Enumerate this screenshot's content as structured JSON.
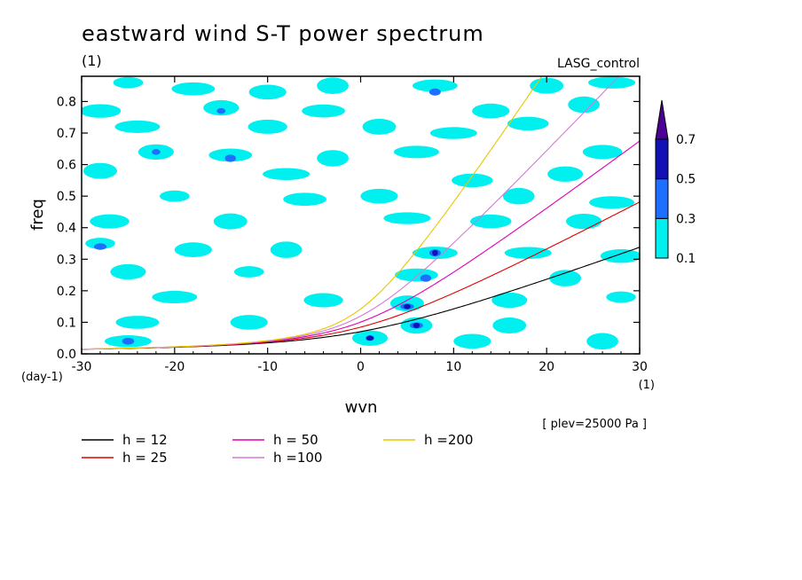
{
  "chart_data": {
    "type": "contour",
    "title": "eastward wind S-T power spectrum",
    "subtitle_left": "(1)",
    "subtitle_right": "LASG_control",
    "xlabel": "wvn",
    "ylabel": "freq",
    "x_unit": "(1)",
    "y_unit": "(day-1)",
    "annotation": "[ plev=25000 Pa ]",
    "xlim": [
      -30,
      30
    ],
    "ylim": [
      0,
      0.88
    ],
    "x_ticks": [
      -30,
      -20,
      -10,
      0,
      10,
      20,
      30
    ],
    "x_tick_labels": [
      "-30",
      "-20",
      "-10",
      "0",
      "10",
      "20",
      "30"
    ],
    "y_ticks": [
      0,
      0.1,
      0.2,
      0.3,
      0.4,
      0.5,
      0.6,
      0.7,
      0.8
    ],
    "y_tick_labels": [
      "0.0",
      "0.1",
      "0.2",
      "0.3",
      "0.4",
      "0.5",
      "0.6",
      "0.7",
      "0.8"
    ],
    "colorbar": {
      "levels": [
        0.1,
        0.3,
        0.5,
        0.7
      ],
      "labels": [
        "0.1",
        "0.3",
        "0.5",
        "0.7"
      ],
      "colors": [
        "#00f0f0",
        "#1e6eff",
        "#1212b4",
        "#4b0096"
      ]
    },
    "patches": [
      {
        "x": -25,
        "y": 0.86,
        "level": 0.1
      },
      {
        "x": -18,
        "y": 0.84,
        "level": 0.1
      },
      {
        "x": -10,
        "y": 0.83,
        "level": 0.1
      },
      {
        "x": -3,
        "y": 0.85,
        "level": 0.1
      },
      {
        "x": 8,
        "y": 0.85,
        "level": 0.1
      },
      {
        "x": 8,
        "y": 0.83,
        "level": 0.3
      },
      {
        "x": 20,
        "y": 0.85,
        "level": 0.1
      },
      {
        "x": 27,
        "y": 0.86,
        "level": 0.1
      },
      {
        "x": -28,
        "y": 0.77,
        "level": 0.1
      },
      {
        "x": -15,
        "y": 0.78,
        "level": 0.1
      },
      {
        "x": -15,
        "y": 0.77,
        "level": 0.3
      },
      {
        "x": -4,
        "y": 0.77,
        "level": 0.1
      },
      {
        "x": 14,
        "y": 0.77,
        "level": 0.1
      },
      {
        "x": 24,
        "y": 0.79,
        "level": 0.1
      },
      {
        "x": -24,
        "y": 0.72,
        "level": 0.1
      },
      {
        "x": -10,
        "y": 0.72,
        "level": 0.1
      },
      {
        "x": 2,
        "y": 0.72,
        "level": 0.1
      },
      {
        "x": 10,
        "y": 0.7,
        "level": 0.1
      },
      {
        "x": 18,
        "y": 0.73,
        "level": 0.1
      },
      {
        "x": -22,
        "y": 0.64,
        "level": 0.1
      },
      {
        "x": -22,
        "y": 0.64,
        "level": 0.3
      },
      {
        "x": -14,
        "y": 0.63,
        "level": 0.1
      },
      {
        "x": -14,
        "y": 0.62,
        "level": 0.3
      },
      {
        "x": -3,
        "y": 0.62,
        "level": 0.1
      },
      {
        "x": 6,
        "y": 0.64,
        "level": 0.1
      },
      {
        "x": 26,
        "y": 0.64,
        "level": 0.1
      },
      {
        "x": -28,
        "y": 0.58,
        "level": 0.1
      },
      {
        "x": -8,
        "y": 0.57,
        "level": 0.1
      },
      {
        "x": 12,
        "y": 0.55,
        "level": 0.1
      },
      {
        "x": 22,
        "y": 0.57,
        "level": 0.1
      },
      {
        "x": -20,
        "y": 0.5,
        "level": 0.1
      },
      {
        "x": -6,
        "y": 0.49,
        "level": 0.1
      },
      {
        "x": 2,
        "y": 0.5,
        "level": 0.1
      },
      {
        "x": 17,
        "y": 0.5,
        "level": 0.1
      },
      {
        "x": 27,
        "y": 0.48,
        "level": 0.1
      },
      {
        "x": -27,
        "y": 0.42,
        "level": 0.1
      },
      {
        "x": -14,
        "y": 0.42,
        "level": 0.1
      },
      {
        "x": 5,
        "y": 0.43,
        "level": 0.1
      },
      {
        "x": 14,
        "y": 0.42,
        "level": 0.1
      },
      {
        "x": 24,
        "y": 0.42,
        "level": 0.1
      },
      {
        "x": -28,
        "y": 0.35,
        "level": 0.1
      },
      {
        "x": -28,
        "y": 0.34,
        "level": 0.3
      },
      {
        "x": -18,
        "y": 0.33,
        "level": 0.1
      },
      {
        "x": -8,
        "y": 0.33,
        "level": 0.1
      },
      {
        "x": 8,
        "y": 0.32,
        "level": 0.1
      },
      {
        "x": 8,
        "y": 0.32,
        "level": 0.3
      },
      {
        "x": 8,
        "y": 0.32,
        "level": 0.5
      },
      {
        "x": 18,
        "y": 0.32,
        "level": 0.1
      },
      {
        "x": 28,
        "y": 0.31,
        "level": 0.1
      },
      {
        "x": -25,
        "y": 0.26,
        "level": 0.1
      },
      {
        "x": -12,
        "y": 0.26,
        "level": 0.1
      },
      {
        "x": 6,
        "y": 0.25,
        "level": 0.1
      },
      {
        "x": 7,
        "y": 0.24,
        "level": 0.3
      },
      {
        "x": 22,
        "y": 0.24,
        "level": 0.1
      },
      {
        "x": -20,
        "y": 0.18,
        "level": 0.1
      },
      {
        "x": -4,
        "y": 0.17,
        "level": 0.1
      },
      {
        "x": 5,
        "y": 0.16,
        "level": 0.1
      },
      {
        "x": 5,
        "y": 0.15,
        "level": 0.3
      },
      {
        "x": 5,
        "y": 0.15,
        "level": 0.5
      },
      {
        "x": 16,
        "y": 0.17,
        "level": 0.1
      },
      {
        "x": 28,
        "y": 0.18,
        "level": 0.1
      },
      {
        "x": -24,
        "y": 0.1,
        "level": 0.1
      },
      {
        "x": -12,
        "y": 0.1,
        "level": 0.1
      },
      {
        "x": 6,
        "y": 0.09,
        "level": 0.1
      },
      {
        "x": 6,
        "y": 0.09,
        "level": 0.3
      },
      {
        "x": 6,
        "y": 0.09,
        "level": 0.5
      },
      {
        "x": 16,
        "y": 0.09,
        "level": 0.1
      },
      {
        "x": -25,
        "y": 0.04,
        "level": 0.1
      },
      {
        "x": -25,
        "y": 0.04,
        "level": 0.3
      },
      {
        "x": 1,
        "y": 0.05,
        "level": 0.1
      },
      {
        "x": 1,
        "y": 0.05,
        "level": 0.3
      },
      {
        "x": 1,
        "y": 0.05,
        "level": 0.5
      },
      {
        "x": 12,
        "y": 0.04,
        "level": 0.1
      },
      {
        "x": 26,
        "y": 0.04,
        "level": 0.1
      }
    ],
    "series": [
      {
        "name": "h = 12",
        "h": 12,
        "color": "#000000"
      },
      {
        "name": "h = 25",
        "h": 25,
        "color": "#e00000"
      },
      {
        "name": "h = 50",
        "h": 50,
        "color": "#e000b4"
      },
      {
        "name": "h =100",
        "h": 100,
        "color": "#d27ad8"
      },
      {
        "name": "h =200",
        "h": 200,
        "color": "#e6c800"
      }
    ],
    "legend_placement": "bottom"
  }
}
